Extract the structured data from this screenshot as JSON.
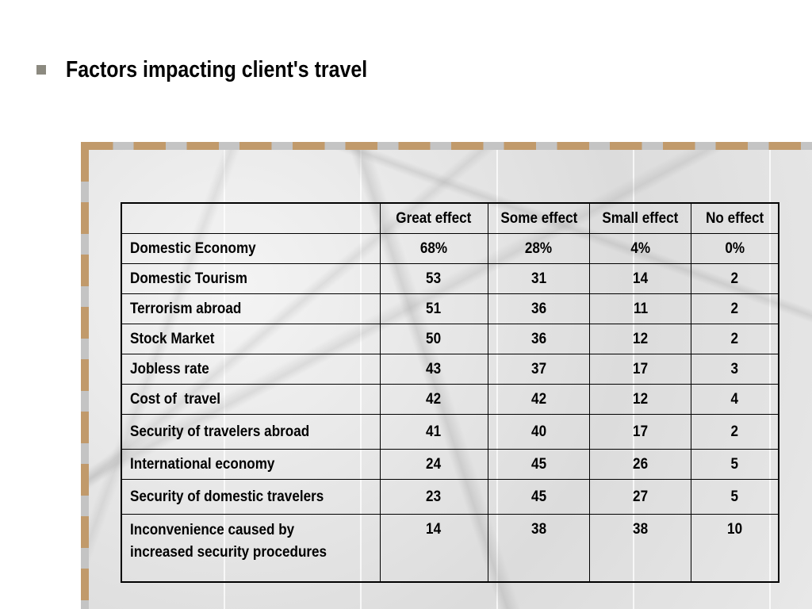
{
  "slide": {
    "title": "Factors impacting client's travel"
  },
  "table": {
    "headers": [
      "",
      "Great effect",
      "Some effect",
      "Small effect",
      "No effect"
    ],
    "rows": [
      {
        "factor": "Domestic Economy",
        "values": [
          "68%",
          "28%",
          "4%",
          "0%"
        ]
      },
      {
        "factor": "Domestic Tourism",
        "values": [
          "53",
          "31",
          "14",
          "2"
        ]
      },
      {
        "factor": "Terrorism abroad",
        "values": [
          "51",
          "36",
          "11",
          "2"
        ]
      },
      {
        "factor": "Stock Market",
        "values": [
          "50",
          "36",
          "12",
          "2"
        ]
      },
      {
        "factor": "Jobless rate",
        "values": [
          "43",
          "37",
          "17",
          "3"
        ]
      },
      {
        "factor": "Cost of  travel",
        "values": [
          "42",
          "42",
          "12",
          "4"
        ]
      },
      {
        "factor": "Security of travelers abroad",
        "values": [
          "41",
          "40",
          "17",
          "2"
        ]
      },
      {
        "factor": "International economy",
        "values": [
          "24",
          "45",
          "26",
          "5"
        ]
      },
      {
        "factor": "Security of domestic travelers",
        "values": [
          "23",
          "45",
          "27",
          "5"
        ]
      },
      {
        "factor": "Inconvenience caused by increased security procedures",
        "values": [
          "14",
          "38",
          "38",
          "10"
        ]
      }
    ]
  },
  "colors": {
    "bullet": "#8c8a80",
    "frame_accent": "#c19a6b",
    "frame_gray": "#c4c4c4"
  }
}
